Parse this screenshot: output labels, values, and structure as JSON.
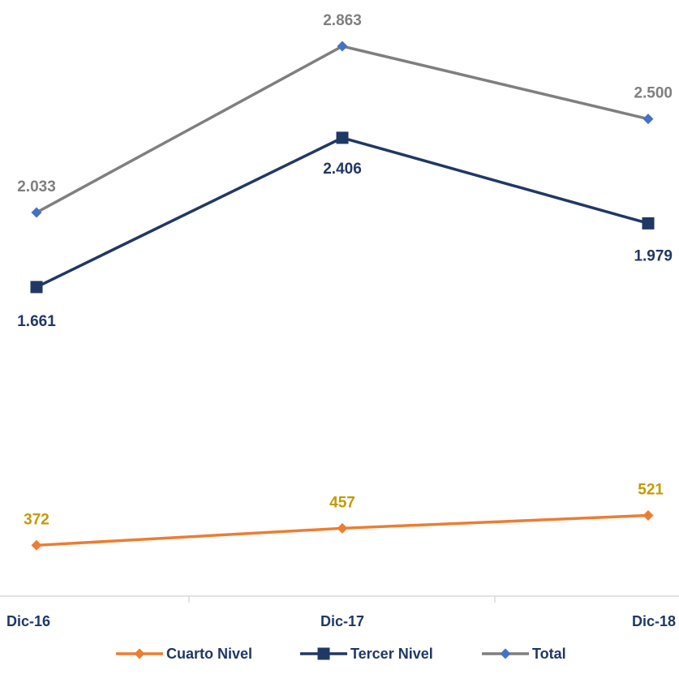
{
  "chart_data": {
    "type": "line",
    "categories": [
      "Dic-16",
      "Dic-17",
      "Dic-18"
    ],
    "series": [
      {
        "name": "Cuarto Nivel",
        "values": [
          372,
          457,
          521
        ],
        "labels": [
          "372",
          "457",
          "521"
        ],
        "color": "#ed7d31",
        "label_color": "#c49a00",
        "marker": "diamond",
        "label_pos": "above"
      },
      {
        "name": "Tercer Nivel",
        "values": [
          1661,
          2406,
          1979
        ],
        "labels": [
          "1.661",
          "2.406",
          "1.979"
        ],
        "color": "#203864",
        "label_color": "#203864",
        "marker": "square",
        "label_pos": "below"
      },
      {
        "name": "Total",
        "values": [
          2033,
          2863,
          2500
        ],
        "labels": [
          "2.033",
          "2.863",
          "2.500"
        ],
        "color": "#7f7f7f",
        "marker_color": "#4472c4",
        "label_color": "#7f7f7f",
        "marker": "diamond",
        "label_pos": "above"
      }
    ],
    "legend_position": "bottom",
    "grid": false,
    "y_axis_visible": false
  }
}
